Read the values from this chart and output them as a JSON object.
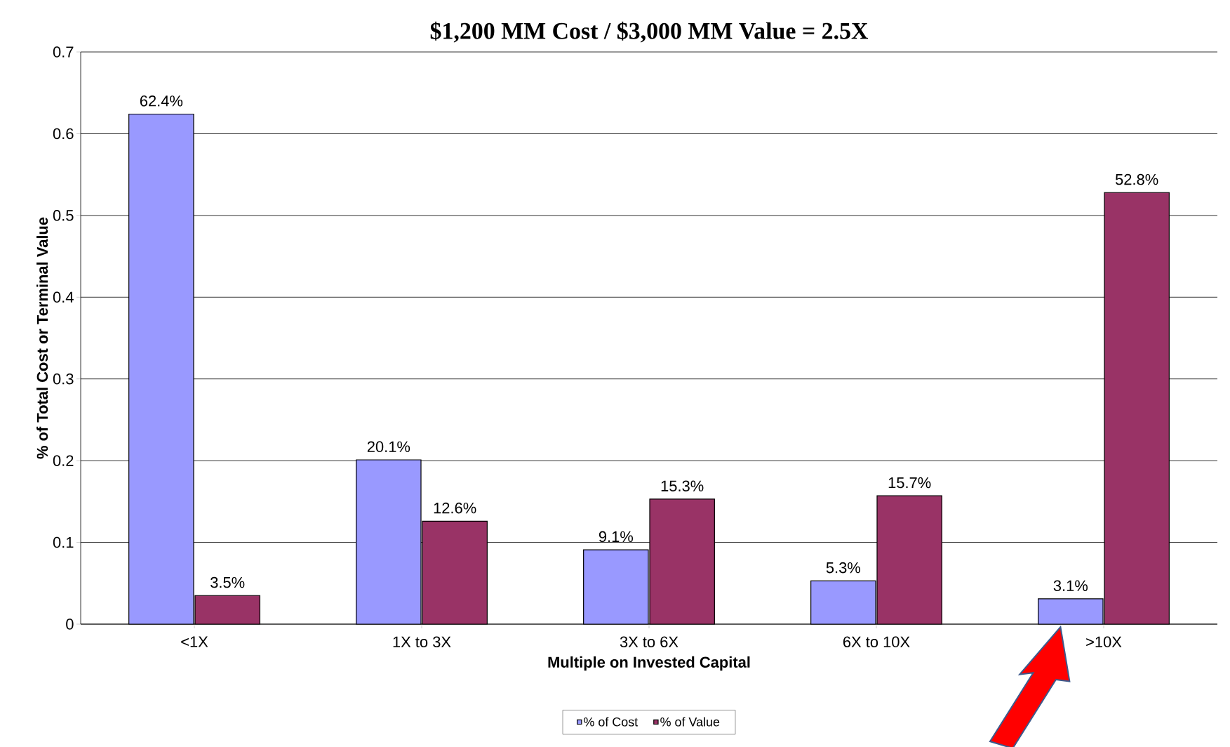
{
  "chart_data": {
    "type": "bar",
    "title": "$1,200 MM Cost / $3,000 MM Value = 2.5X",
    "xlabel": "Multiple on Invested Capital",
    "ylabel": "% of Total Cost or Terminal Value",
    "categories": [
      "<1X",
      "1X to 3X",
      "3X to 6X",
      "6X to 10X",
      ">10X"
    ],
    "series": [
      {
        "name": "% of Cost",
        "color": "#9999ff",
        "values": [
          0.624,
          0.201,
          0.091,
          0.053,
          0.031
        ],
        "value_labels": [
          "62.4%",
          "20.1%",
          "9.1%",
          "5.3%",
          "3.1%"
        ]
      },
      {
        "name": "% of Value",
        "color": "#993366",
        "values": [
          0.035,
          0.126,
          0.153,
          0.157,
          0.528
        ],
        "value_labels": [
          "3.5%",
          "12.6%",
          "15.3%",
          "15.7%",
          "52.8%"
        ]
      }
    ],
    "ylim": [
      0,
      0.7
    ],
    "yticks": [
      0,
      0.1,
      0.2,
      0.3,
      0.4,
      0.5,
      0.6,
      0.7
    ],
    "grid": "y",
    "legend": "bottom"
  }
}
